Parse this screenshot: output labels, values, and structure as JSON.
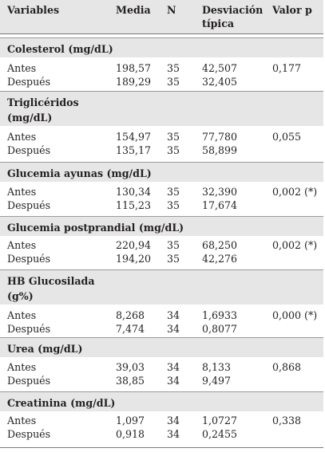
{
  "header": {
    "variables": "Variables",
    "media": "Media",
    "n": "N",
    "desviacion_line1": "Desviación",
    "desviacion_line2": "típica",
    "valor_p": "Valor p"
  },
  "sections": [
    {
      "title": "Colesterol (mg/dL)",
      "rows": [
        {
          "label": "Antes",
          "media": "198,57",
          "n": "35",
          "sd": "42,507",
          "p": "0,177"
        },
        {
          "label": "Después",
          "media": "189,29",
          "n": "35",
          "sd": "32,405",
          "p": ""
        }
      ]
    },
    {
      "title": "Triglicéridos (mg/dL)",
      "rows": [
        {
          "label": "Antes",
          "media": "154,97",
          "n": "35",
          "sd": "77,780",
          "p": "0,055"
        },
        {
          "label": "Después",
          "media": "135,17",
          "n": "35",
          "sd": "58,899",
          "p": ""
        }
      ]
    },
    {
      "title": "Glucemia ayunas (mg/dL)",
      "rows": [
        {
          "label": "Antes",
          "media": "130,34",
          "n": "35",
          "sd": "32,390",
          "p": "0,002 (*)"
        },
        {
          "label": "Después",
          "media": "115,23",
          "n": "35",
          "sd": "17,674",
          "p": ""
        }
      ]
    },
    {
      "title": "Glucemia postprandial (mg/dL)",
      "rows": [
        {
          "label": "Antes",
          "media": "220,94",
          "n": "35",
          "sd": "68,250",
          "p": "0,002 (*)"
        },
        {
          "label": "Después",
          "media": "194,20",
          "n": "35",
          "sd": "42,276",
          "p": ""
        }
      ]
    },
    {
      "title": "HB Glucosilada (g%)",
      "rows": [
        {
          "label": "Antes",
          "media": "8,268",
          "n": "34",
          "sd": "1,6933",
          "p": "0,000 (*)"
        },
        {
          "label": "Después",
          "media": "7,474",
          "n": "34",
          "sd": "0,8077",
          "p": ""
        }
      ]
    },
    {
      "title": "Urea (mg/dL)",
      "rows": [
        {
          "label": "Antes",
          "media": "39,03",
          "n": "34",
          "sd": "8,133",
          "p": "0,868"
        },
        {
          "label": "Después",
          "media": "38,85",
          "n": "34",
          "sd": "9,497",
          "p": ""
        }
      ]
    },
    {
      "title": "Creatinina (mg/dL)",
      "rows": [
        {
          "label": "Antes",
          "media": "1,097",
          "n": "34",
          "sd": "1,0727",
          "p": "0,338"
        },
        {
          "label": "Después",
          "media": "0,918",
          "n": "34",
          "sd": "0,2455",
          "p": ""
        }
      ]
    }
  ]
}
